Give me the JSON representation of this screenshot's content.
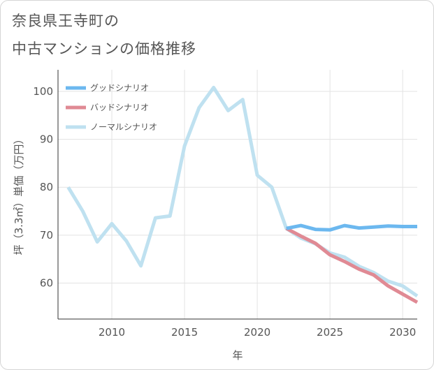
{
  "title": {
    "line1": "奈良県王寺町の",
    "line2": "中古マンションの価格推移"
  },
  "colors": {
    "good": "#6cb8ef",
    "bad": "#e08a94",
    "normal": "#bfe1f0",
    "grid": "#e3e3e3",
    "axis": "#333333"
  },
  "chart_data": {
    "type": "line",
    "title": "奈良県王寺町の中古マンションの価格推移",
    "xlabel": "年",
    "ylabel": "坪（3.3㎡）単価（万円）",
    "xlim": [
      2006.3,
      2031.0
    ],
    "ylim": [
      52.5,
      104.5
    ],
    "xticks": [
      2010,
      2015,
      2020,
      2025,
      2030
    ],
    "yticks": [
      60,
      70,
      80,
      90,
      100
    ],
    "grid": true,
    "legend_position": "top-left",
    "series": [
      {
        "name": "グッドシナリオ",
        "key": "good",
        "x": [
          2022,
          2023,
          2024,
          2025,
          2026,
          2027,
          2028,
          2029,
          2030,
          2031
        ],
        "values": [
          71.4,
          72.0,
          71.2,
          71.1,
          72.0,
          71.5,
          71.7,
          71.9,
          71.8,
          71.8
        ]
      },
      {
        "name": "バッドシナリオ",
        "key": "bad",
        "x": [
          2022,
          2023,
          2024,
          2025,
          2026,
          2027,
          2028,
          2029,
          2030,
          2031
        ],
        "values": [
          71.4,
          69.8,
          68.3,
          65.9,
          64.5,
          62.9,
          61.7,
          59.4,
          57.7,
          56.0
        ]
      },
      {
        "name": "ノーマルシナリオ",
        "key": "normal",
        "x": [
          2007,
          2008,
          2009,
          2010,
          2011,
          2012,
          2013,
          2014,
          2015,
          2016,
          2017,
          2018,
          2019,
          2020,
          2021,
          2022,
          2023,
          2024,
          2025,
          2026,
          2027,
          2028,
          2029,
          2030,
          2031
        ],
        "values": [
          80.0,
          75.0,
          68.6,
          72.4,
          68.8,
          63.6,
          73.6,
          74.0,
          88.6,
          96.6,
          100.8,
          96.0,
          98.3,
          82.5,
          80.0,
          71.4,
          69.4,
          68.2,
          66.3,
          65.4,
          63.5,
          62.2,
          60.4,
          59.4,
          57.3
        ]
      }
    ]
  }
}
